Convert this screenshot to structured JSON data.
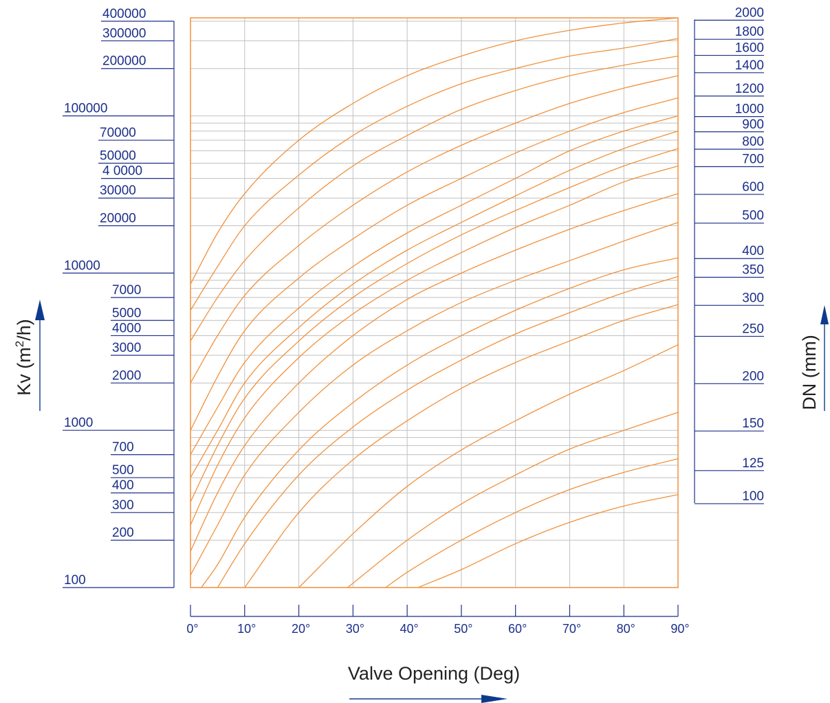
{
  "colors": {
    "frame": "#f0913c",
    "curve": "#f0913c",
    "grid": "#c0c0c0",
    "scale": "#1b2f8a",
    "arrow": "#0e3a8c",
    "title": "#222222"
  },
  "labels": {
    "ylabel_main": "Kv (m",
    "ylabel_sup": "2",
    "ylabel_tail": "/h)",
    "y2label": "DN (mm)",
    "xlabel": "Valve Opening (Deg)"
  },
  "chart_data": {
    "type": "line",
    "title": "",
    "xlabel": "Valve Opening (Deg)",
    "ylabel": "Kv (m2/h)",
    "y2label": "DN (mm)",
    "xlim": [
      0,
      90
    ],
    "ylim": [
      100,
      400000
    ],
    "yscale": "log",
    "grid": true,
    "x_ticks": [
      "0°",
      "10°",
      "20°",
      "30°",
      "40°",
      "50°",
      "60°",
      "70°",
      "80°",
      "90°"
    ],
    "kv_ticks": [
      {
        "label": "400000",
        "value": 400000
      },
      {
        "label": "300000",
        "value": 300000
      },
      {
        "label": "200000",
        "value": 200000
      },
      {
        "label": "100000",
        "value": 100000
      },
      {
        "label": "70000",
        "value": 70000
      },
      {
        "label": "50000",
        "value": 50000
      },
      {
        "label": "4 0000",
        "value": 40000
      },
      {
        "label": "30000",
        "value": 30000
      },
      {
        "label": "20000",
        "value": 20000
      },
      {
        "label": "10000",
        "value": 10000
      },
      {
        "label": "7000",
        "value": 7000
      },
      {
        "label": "5000",
        "value": 5000
      },
      {
        "label": "4000",
        "value": 4000
      },
      {
        "label": "3000",
        "value": 3000
      },
      {
        "label": "2000",
        "value": 2000
      },
      {
        "label": "1000",
        "value": 1000
      },
      {
        "label": "700",
        "value": 700
      },
      {
        "label": "500",
        "value": 500
      },
      {
        "label": "400",
        "value": 400
      },
      {
        "label": "300",
        "value": 300
      },
      {
        "label": "200",
        "value": 200
      },
      {
        "label": "100",
        "value": 100
      }
    ],
    "dn_ticks": [
      {
        "label": "2000",
        "kv": 410000
      },
      {
        "label": "1800",
        "kv": 310000
      },
      {
        "label": "1600",
        "kv": 245000
      },
      {
        "label": "1400",
        "kv": 190000
      },
      {
        "label": "1200",
        "kv": 135000
      },
      {
        "label": "1000",
        "kv": 100000
      },
      {
        "label": "900",
        "kv": 80000
      },
      {
        "label": "800",
        "kv": 62000
      },
      {
        "label": "700",
        "kv": 48000
      },
      {
        "label": "600",
        "kv": 32000
      },
      {
        "label": "500",
        "kv": 21000
      },
      {
        "label": "400",
        "kv": 12500
      },
      {
        "label": "350",
        "kv": 9500
      },
      {
        "label": "300",
        "kv": 6300
      },
      {
        "label": "250",
        "kv": 4000
      },
      {
        "label": "200",
        "kv": 2000
      },
      {
        "label": "150",
        "kv": 1000
      },
      {
        "label": "125",
        "kv": 560
      },
      {
        "label": "100",
        "kv": 345
      }
    ],
    "series": [
      {
        "x": [
          0,
          5,
          10,
          20,
          30,
          40,
          50,
          60,
          70,
          80,
          90
        ],
        "y": [
          8500,
          18000,
          32000,
          70000,
          120000,
          180000,
          240000,
          300000,
          350000,
          390000,
          420000
        ]
      },
      {
        "x": [
          0,
          5,
          10,
          20,
          30,
          40,
          50,
          60,
          70,
          80,
          90
        ],
        "y": [
          5800,
          11000,
          20000,
          42000,
          75000,
          115000,
          160000,
          200000,
          240000,
          270000,
          310000
        ]
      },
      {
        "x": [
          0,
          5,
          10,
          20,
          30,
          40,
          50,
          60,
          70,
          80,
          90
        ],
        "y": [
          3700,
          7000,
          12000,
          26000,
          48000,
          75000,
          110000,
          145000,
          180000,
          210000,
          240000
        ]
      },
      {
        "x": [
          0,
          5,
          10,
          20,
          30,
          40,
          50,
          60,
          70,
          80,
          90
        ],
        "y": [
          2000,
          4000,
          7200,
          15000,
          27000,
          44000,
          65000,
          90000,
          120000,
          150000,
          180000
        ]
      },
      {
        "x": [
          0,
          5,
          10,
          20,
          30,
          40,
          50,
          60,
          70,
          80,
          90
        ],
        "y": [
          1000,
          2200,
          4300,
          9300,
          16500,
          27000,
          40000,
          58000,
          80000,
          105000,
          130000
        ]
      },
      {
        "x": [
          0,
          5,
          10,
          20,
          30,
          40,
          50,
          60,
          70,
          80,
          90
        ],
        "y": [
          700,
          1400,
          2700,
          6000,
          11000,
          18000,
          27000,
          40000,
          60000,
          80000,
          100000
        ]
      },
      {
        "x": [
          0,
          5,
          10,
          20,
          30,
          40,
          50,
          60,
          70,
          80,
          90
        ],
        "y": [
          500,
          1000,
          2000,
          4500,
          8500,
          14000,
          21000,
          31000,
          45000,
          62000,
          80000
        ]
      },
      {
        "x": [
          0,
          5,
          10,
          20,
          30,
          40,
          50,
          60,
          70,
          80,
          90
        ],
        "y": [
          350,
          800,
          1600,
          3700,
          7000,
          11500,
          17500,
          25000,
          35000,
          48000,
          62000
        ]
      },
      {
        "x": [
          0,
          5,
          10,
          20,
          30,
          40,
          50,
          60,
          70,
          80,
          90
        ],
        "y": [
          250,
          600,
          1200,
          2900,
          5500,
          9000,
          13500,
          19500,
          27000,
          38000,
          48000
        ]
      },
      {
        "x": [
          0,
          5,
          10,
          20,
          30,
          40,
          50,
          60,
          70,
          80,
          90
        ],
        "y": [
          170,
          400,
          800,
          2000,
          4000,
          6800,
          10000,
          14000,
          19000,
          25000,
          32000
        ]
      },
      {
        "x": [
          0,
          5,
          10,
          20,
          30,
          40,
          50,
          60,
          70,
          80,
          90
        ],
        "y": [
          120,
          250,
          520,
          1300,
          2600,
          4300,
          6500,
          9000,
          12000,
          16000,
          21000
        ]
      },
      {
        "x": [
          2,
          5,
          10,
          20,
          30,
          40,
          50,
          60,
          70,
          80,
          90
        ],
        "y": [
          100,
          140,
          280,
          750,
          1500,
          2600,
          4000,
          5800,
          8000,
          10500,
          12500
        ]
      },
      {
        "x": [
          5,
          10,
          20,
          30,
          40,
          50,
          60,
          70,
          80,
          90
        ],
        "y": [
          100,
          190,
          520,
          1050,
          1800,
          2800,
          4100,
          5600,
          7500,
          9500
        ]
      },
      {
        "x": [
          10,
          20,
          30,
          40,
          50,
          60,
          70,
          80,
          90
        ],
        "y": [
          100,
          300,
          650,
          1150,
          1850,
          2700,
          3700,
          5000,
          6300
        ]
      },
      {
        "x": [
          20,
          30,
          40,
          50,
          60,
          70,
          80,
          90
        ],
        "y": [
          100,
          220,
          440,
          750,
          1150,
          1700,
          2400,
          3500
        ]
      },
      {
        "x": [
          29,
          40,
          50,
          60,
          70,
          80,
          90
        ],
        "y": [
          100,
          200,
          340,
          520,
          760,
          1000,
          1300
        ]
      },
      {
        "x": [
          36,
          40,
          50,
          60,
          70,
          80,
          90
        ],
        "y": [
          100,
          125,
          200,
          300,
          420,
          540,
          660
        ]
      },
      {
        "x": [
          42,
          50,
          60,
          70,
          80,
          90
        ],
        "y": [
          100,
          130,
          190,
          260,
          330,
          390
        ]
      }
    ]
  }
}
